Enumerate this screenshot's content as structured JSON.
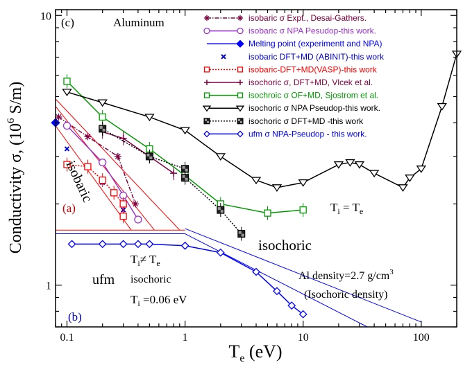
{
  "chart_data": {
    "type": "line",
    "xscale": "log",
    "yscale": "log",
    "xlim": [
      0.08,
      200
    ],
    "ylim": [
      0.7,
      10.5
    ],
    "xticks": [
      {
        "v": 0.1,
        "label": "0.1"
      },
      {
        "v": 1,
        "label": "1"
      },
      {
        "v": 10,
        "label": "10"
      },
      {
        "v": 100,
        "label": "100"
      }
    ],
    "yticks": [
      {
        "v": 1,
        "label": "1"
      },
      {
        "v": 10,
        "label": "10"
      }
    ],
    "xlabel_main": "T",
    "xlabel_sub": "e",
    "xlabel_unit": " (eV)",
    "ylabel": "Conductivity σ,  (10",
    "ylabel_sup": "6",
    "ylabel_unit": " S/m)",
    "annotations": {
      "panel_c": "(c)",
      "material": "Aluminum",
      "panel_a": "(a)",
      "panel_b": "(b)",
      "isobaric": "isobaric",
      "isochoric": "isochoric",
      "ti_eq_te_main": "T",
      "ti_eq_te_sub1": "i",
      "ti_eq_te_mid": " = T",
      "ti_eq_te_sub2": "e",
      "ti_ne_te_main": "T",
      "ti_ne_te_sub1": "i",
      "ti_ne_te_mid": "≠  T",
      "ti_ne_te_sub2": "e",
      "ufm": "ufm",
      "isochoric_small": "isochoric",
      "ti_value_main": "T",
      "ti_value_sub": "i",
      "ti_value_rest": " =0.06 eV",
      "density": "Al density=2.7 g/cm",
      "density_sup": "3",
      "density_note": "(Isochoric density)"
    },
    "series": [
      {
        "name": "isobaric σ  Expt., Desai-Gathers.",
        "color": "#800040",
        "marker": "star",
        "line": "dashdot",
        "x": [
          0.085,
          0.15,
          0.27,
          0.38
        ],
        "y": [
          4.2,
          3.55,
          3.0,
          2.0
        ]
      },
      {
        "name": "isobaric σ NPA Pesudop-this work.",
        "color": "#9933cc",
        "marker": "circle",
        "line": "solid",
        "x": [
          0.1,
          0.2,
          0.3,
          0.4
        ],
        "y": [
          3.9,
          2.85,
          2.15,
          1.75
        ]
      },
      {
        "name": "Melting point (experimentt and NPA)",
        "color": "#0000ff",
        "marker": "diamond-filled",
        "line": "solid",
        "x": [
          0.08
        ],
        "y": [
          4.0
        ]
      },
      {
        "name": "isobaric DFT+MD (ABINIT)-this work",
        "color": "#0000cc",
        "marker": "x",
        "line": "none",
        "x": [
          0.1,
          0.2,
          0.3
        ],
        "y": [
          3.2,
          2.4,
          1.9
        ]
      },
      {
        "name": "isobaric-DFT+MD(VASP)-this work",
        "color": "#ff0000",
        "marker": "square-open",
        "line": "dotted",
        "x": [
          0.1,
          0.15,
          0.2,
          0.25,
          0.3,
          0.3
        ],
        "y": [
          2.8,
          2.75,
          2.45,
          2.2,
          2.0,
          1.8
        ]
      },
      {
        "name": "isochoric σ, DFT+MD, Vlcek et al.",
        "color": "#800040",
        "marker": "plus",
        "line": "solid",
        "x": [
          0.2,
          0.3,
          0.5,
          0.8
        ],
        "y": [
          3.7,
          3.5,
          3.0,
          2.6
        ]
      },
      {
        "name": "isochroic σ  OF+MD, Sjostrom et al.",
        "color": "#009900",
        "marker": "square-open",
        "line": "solid",
        "x": [
          0.1,
          0.2,
          0.5,
          1,
          2,
          5,
          10
        ],
        "y": [
          5.7,
          4.2,
          3.2,
          2.55,
          2.0,
          1.85,
          1.9
        ]
      },
      {
        "name": "isochoric σ NPA Pseudop-this work.",
        "color": "#000000",
        "marker": "triangle-down",
        "line": "solid",
        "x": [
          0.1,
          0.2,
          0.5,
          1,
          2,
          4,
          6,
          10,
          20,
          25,
          30,
          40,
          70,
          80,
          100,
          150,
          200
        ],
        "y": [
          5.2,
          4.75,
          4.2,
          3.75,
          3.0,
          2.45,
          2.3,
          2.4,
          2.8,
          2.85,
          2.8,
          2.6,
          2.3,
          2.5,
          2.7,
          4.6,
          7.2
        ]
      },
      {
        "name": "isochoric σ DFT+MD -this work",
        "color": "#000000",
        "marker": "square-checker",
        "line": "dotted",
        "x": [
          0.2,
          0.5,
          1,
          1,
          2,
          3
        ],
        "y": [
          3.8,
          3.0,
          2.7,
          2.5,
          1.9,
          1.55
        ]
      },
      {
        "name": "ufm  σ NPA-Pseudop  - this work.",
        "color": "#0000ff",
        "marker": "diamond-open",
        "line": "solid",
        "x": [
          0.11,
          0.2,
          0.3,
          0.4,
          0.5,
          1,
          2,
          4,
          6,
          8,
          10
        ],
        "y": [
          1.42,
          1.42,
          1.42,
          1.42,
          1.42,
          1.4,
          1.32,
          1.12,
          0.95,
          0.84,
          0.78
        ]
      }
    ],
    "guides": [
      {
        "panel": "(a)",
        "color": "#ff0000",
        "segments": [
          [
            [
              0.08,
              4.6
            ],
            [
              0.55,
              1.6
            ]
          ],
          [
            [
              0.08,
              3.9
            ],
            [
              0.35,
              1.6
            ]
          ],
          [
            [
              0.08,
              4.9
            ],
            [
              0.9,
              1.6
            ]
          ],
          [
            [
              0.08,
              1.6
            ],
            [
              1.0,
              1.6
            ]
          ]
        ]
      },
      {
        "panel": "(b)",
        "color": "#0000ff",
        "segments": [
          [
            [
              0.08,
              1.55
            ],
            [
              1.0,
              1.55
            ]
          ],
          [
            [
              1.0,
              1.55
            ],
            [
              35,
              0.7
            ]
          ],
          [
            [
              1.0,
              1.62
            ],
            [
              100,
              0.73
            ]
          ]
        ]
      }
    ],
    "legend_position": "top-right",
    "grid": false
  }
}
